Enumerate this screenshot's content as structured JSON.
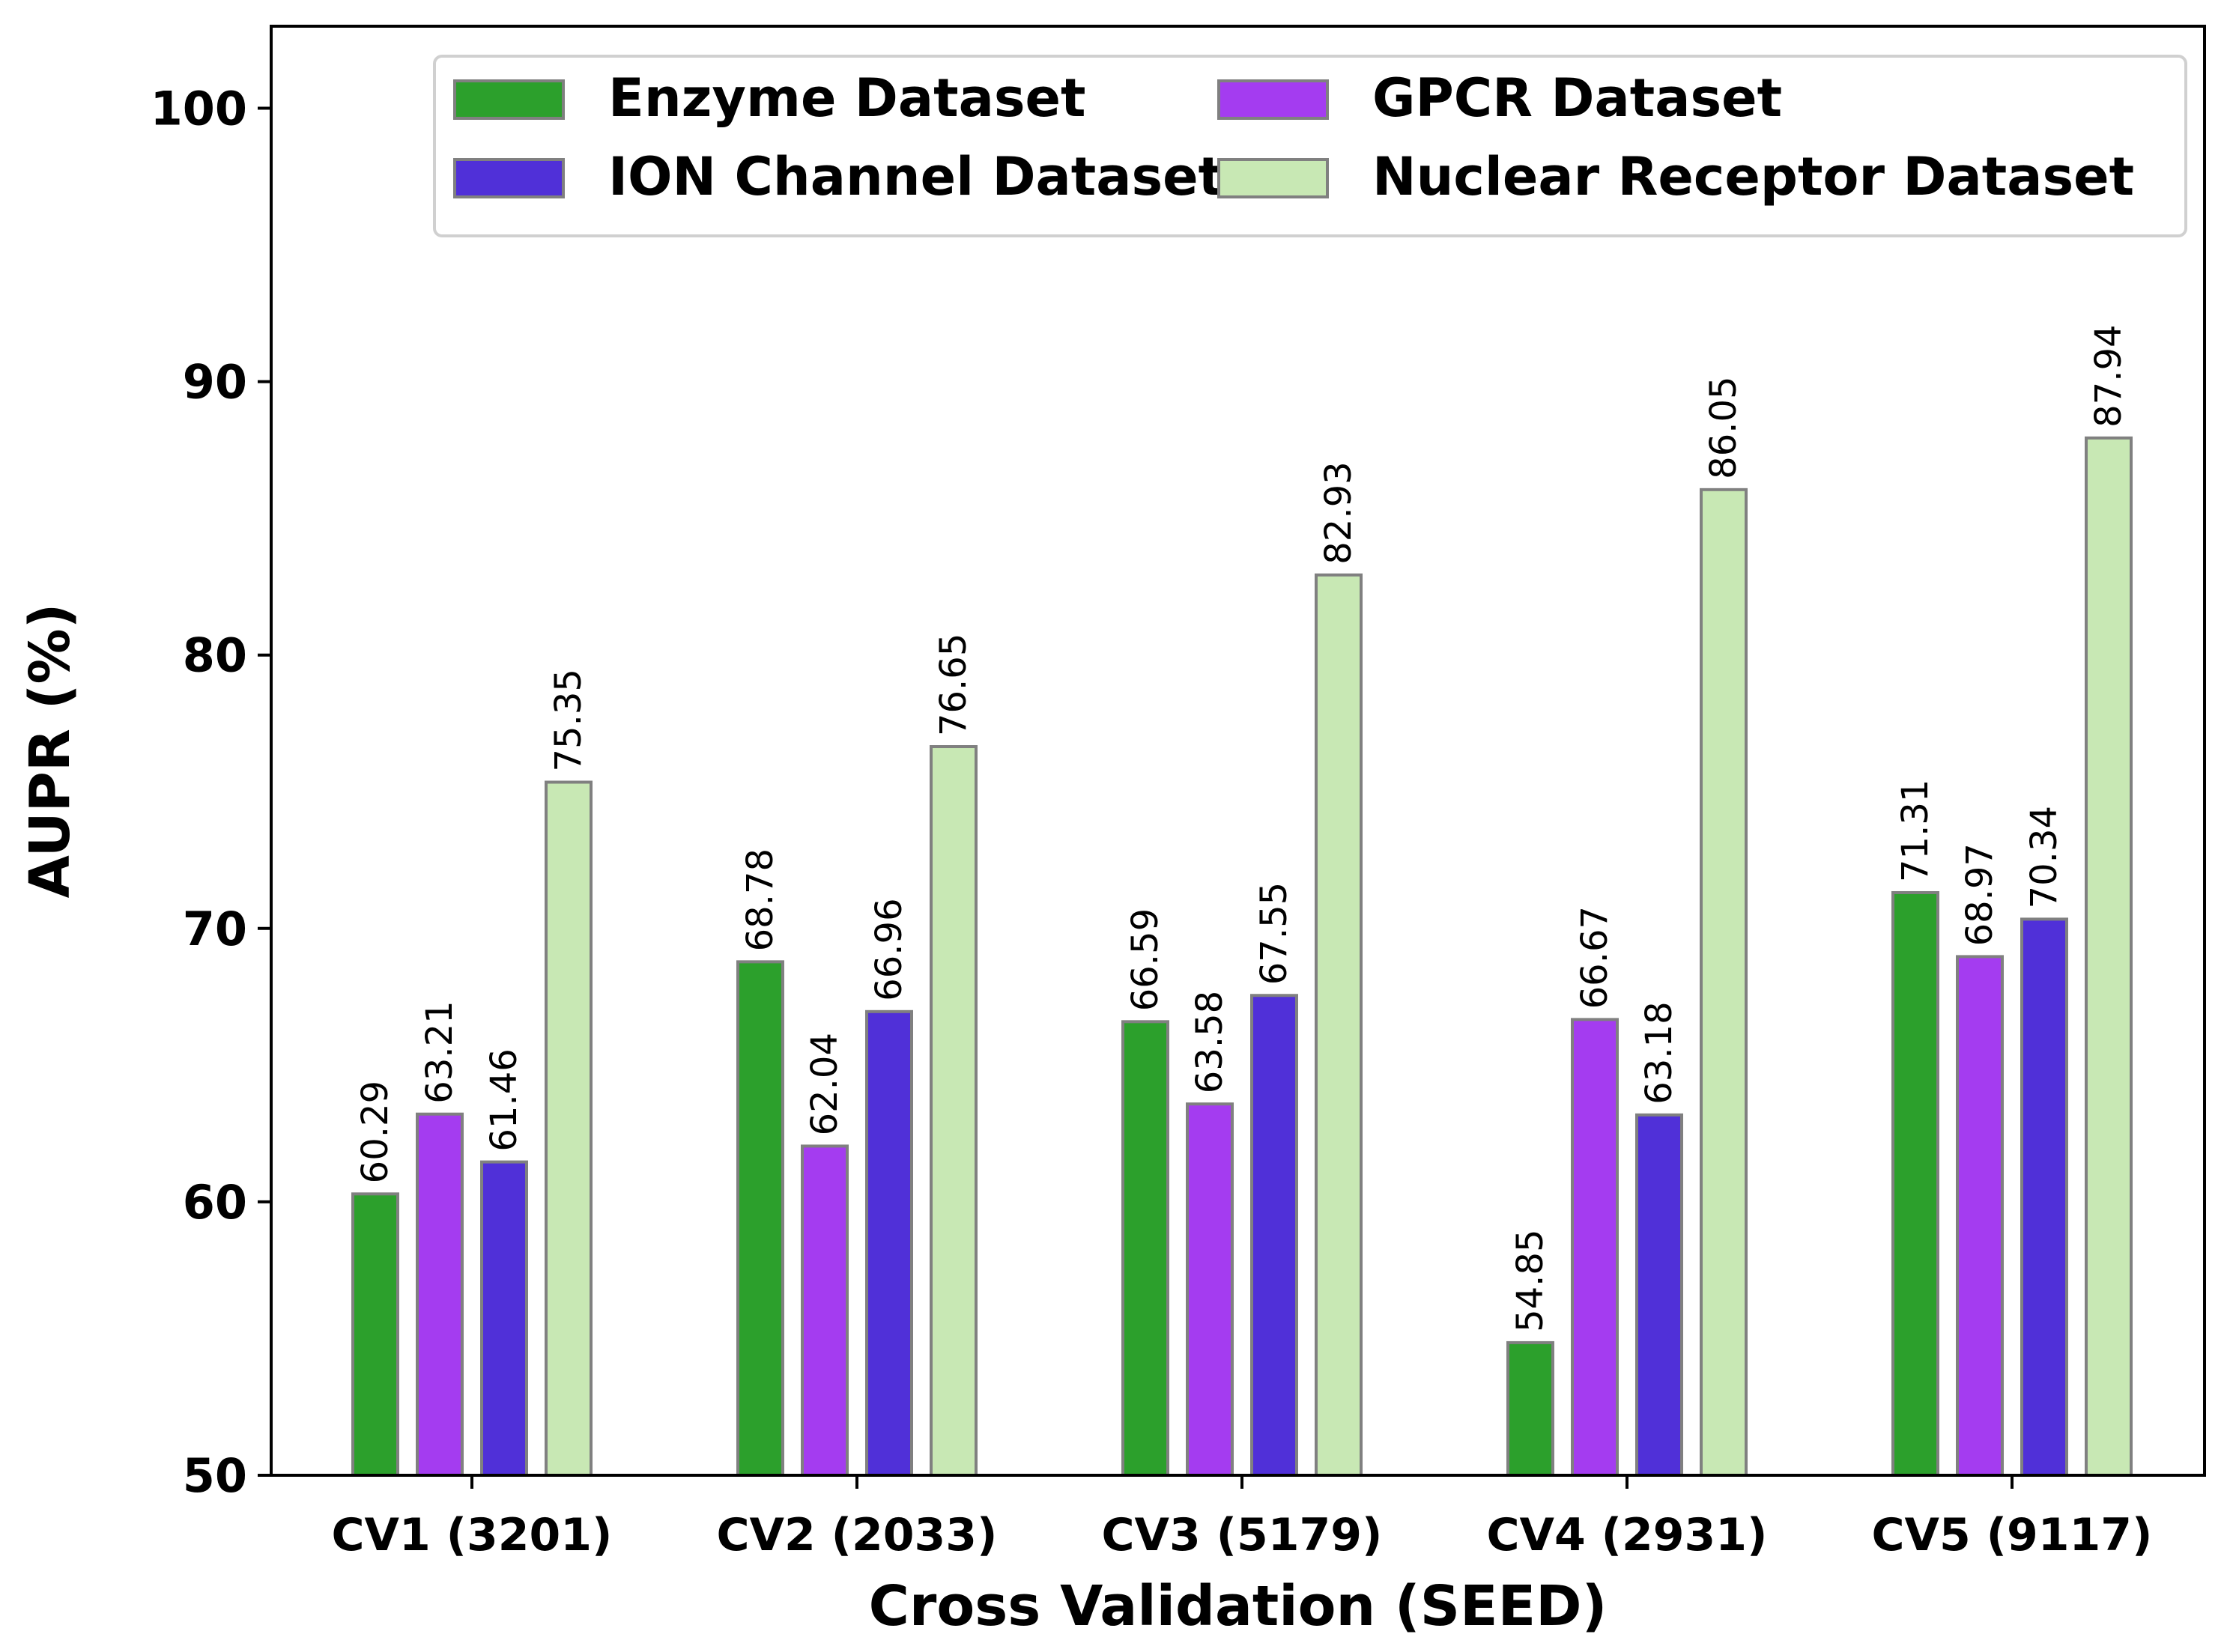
{
  "chart_data": {
    "type": "bar",
    "title": "",
    "xlabel": "Cross Validation (SEED)",
    "ylabel": "AUPR (%)",
    "ylim": [
      50,
      103
    ],
    "yticks": [
      50,
      60,
      70,
      80,
      90,
      100
    ],
    "grid": false,
    "legend_position": "top-right",
    "legend_columns": 2,
    "categories": [
      "CV1 (3201)",
      "CV2 (2033)",
      "CV3 (5179)",
      "CV4 (2931)",
      "CV5 (9117)"
    ],
    "series": [
      {
        "name": "Enzyme Dataset",
        "color": "#2ca02c",
        "values": [
          60.29,
          68.78,
          66.59,
          54.85,
          71.31
        ]
      },
      {
        "name": "GPCR Dataset",
        "color": "#a43cf0",
        "values": [
          63.21,
          62.04,
          63.58,
          66.67,
          68.97
        ]
      },
      {
        "name": "ION Channel Dataset",
        "color": "#5030d8",
        "values": [
          61.46,
          66.96,
          67.55,
          63.18,
          70.34
        ]
      },
      {
        "name": "Nuclear Receptor Dataset",
        "color": "#c8e8b4",
        "values": [
          75.35,
          76.65,
          82.93,
          86.05,
          87.94
        ]
      }
    ],
    "bar_labels": [
      [
        "60.29",
        "68.78",
        "66.59",
        "54.85",
        "71.31"
      ],
      [
        "63.21",
        "62.04",
        "63.58",
        "66.67",
        "68.97"
      ],
      [
        "61.46",
        "66.96",
        "67.55",
        "63.18",
        "70.34"
      ],
      [
        "75.35",
        "76.65",
        "82.93",
        "86.05",
        "87.94"
      ]
    ]
  }
}
